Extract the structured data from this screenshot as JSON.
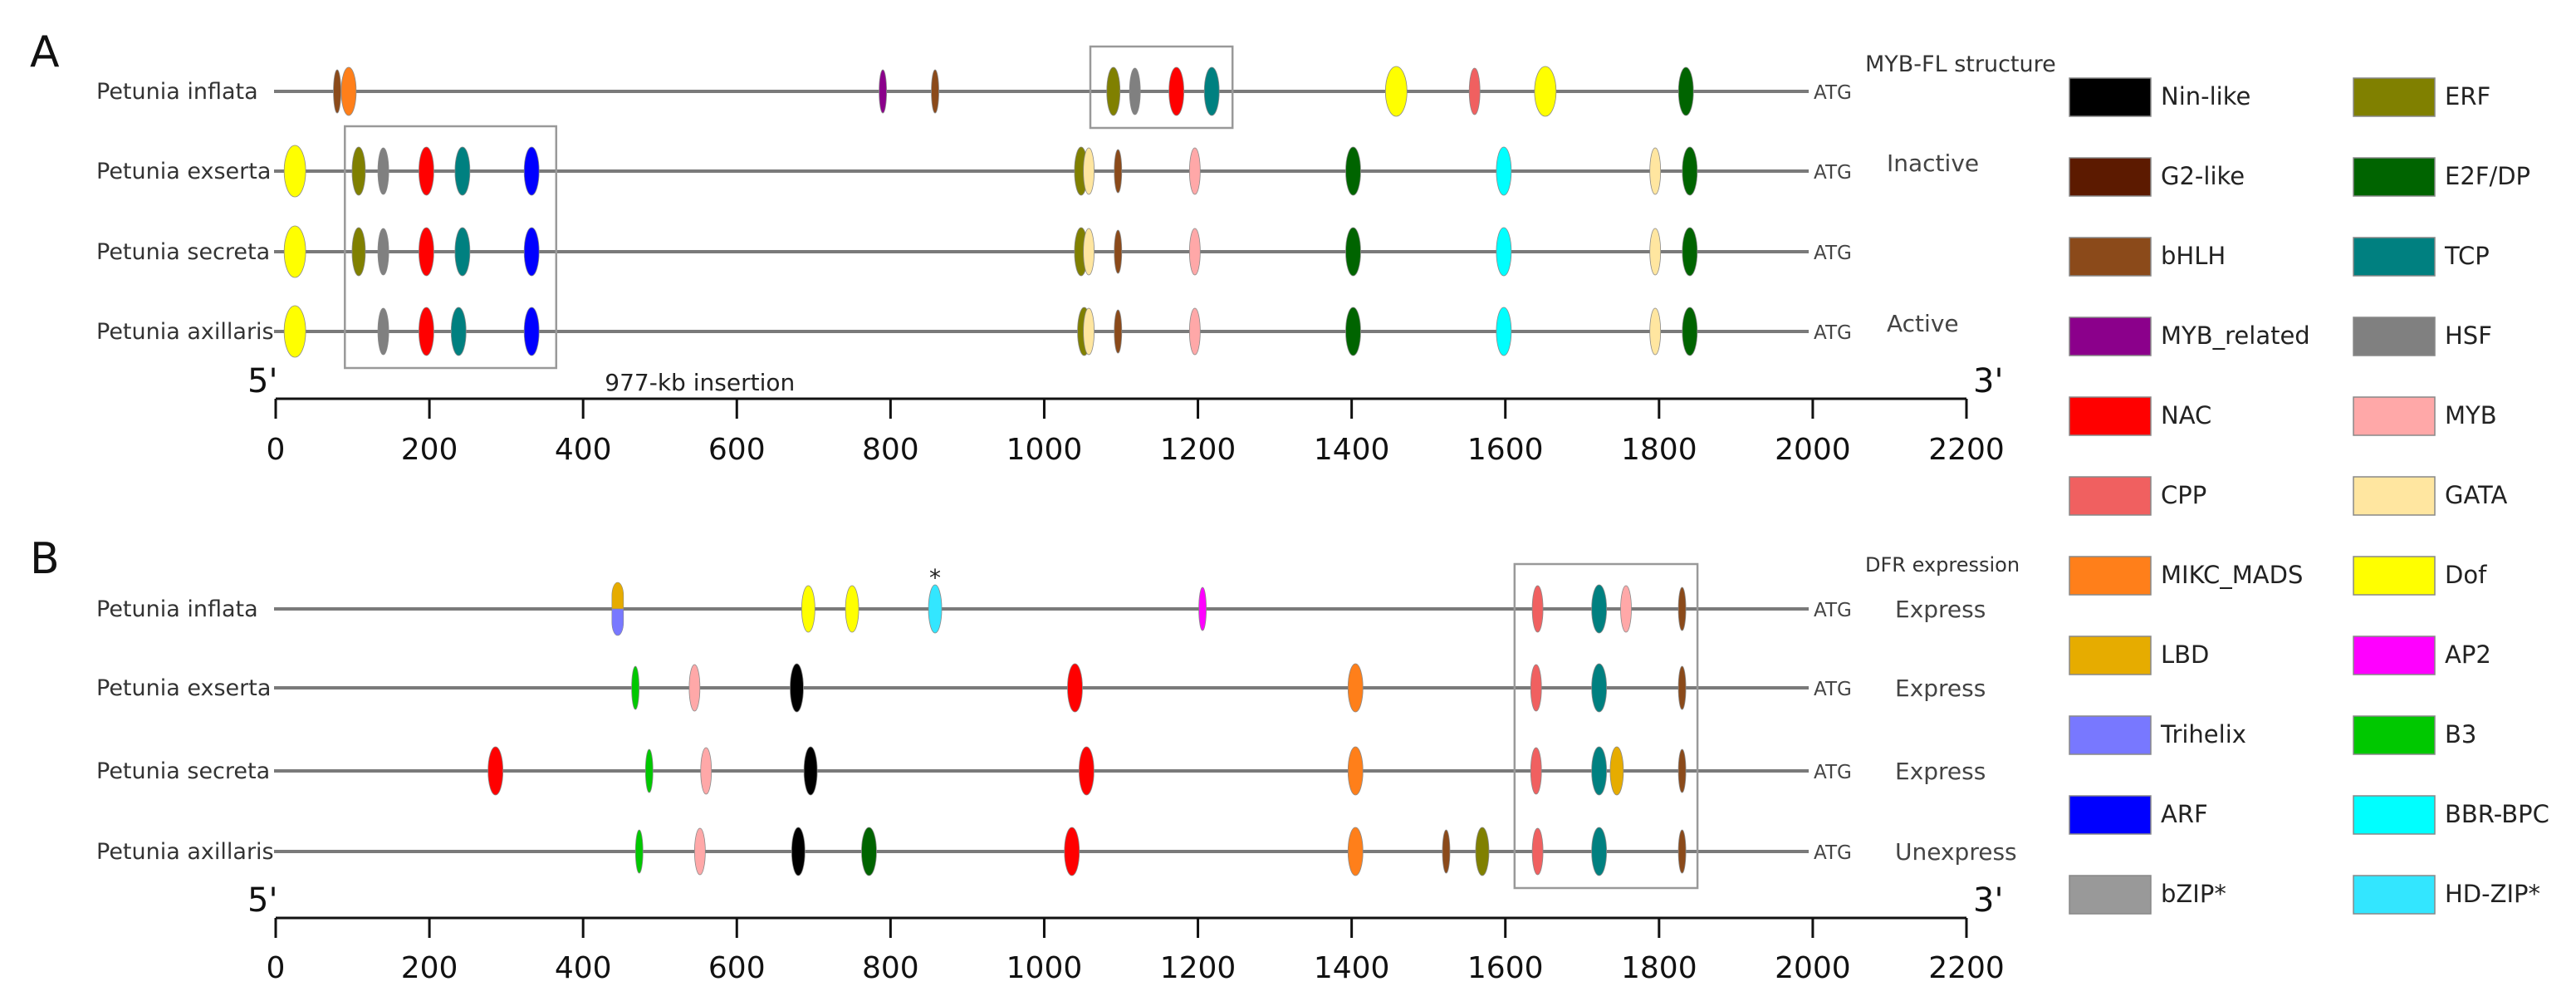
{
  "panels": [
    {
      "letter": "A",
      "header": "MYB-FL structure",
      "sequences": [
        {
          "name": "Petunia inflata",
          "atg": "ATG",
          "status": "",
          "elements": [
            [
              80,
              "bHLH"
            ],
            [
              95,
              "MIKC_MADS"
            ],
            [
              790,
              "MYB_related"
            ],
            [
              858,
              "bHLH"
            ],
            [
              1090,
              "ERF"
            ],
            [
              1118,
              "HSF"
            ],
            [
              1172,
              "NAC"
            ],
            [
              1218,
              "TCP"
            ],
            [
              1458,
              "Dof"
            ],
            [
              1560,
              "CPP"
            ],
            [
              1652,
              "Dof"
            ],
            [
              1835,
              "E2F/DP"
            ]
          ]
        },
        {
          "name": "Petunia exserta",
          "atg": "ATG",
          "status": "Inactive",
          "elements": [
            [
              25,
              "Dof"
            ],
            [
              108,
              "ERF"
            ],
            [
              140,
              "HSF"
            ],
            [
              196,
              "NAC"
            ],
            [
              243,
              "TCP"
            ],
            [
              333,
              "ARF"
            ],
            [
              1048,
              "ERF"
            ],
            [
              1058,
              "GATA"
            ],
            [
              1096,
              "bHLH"
            ],
            [
              1196,
              "MYB"
            ],
            [
              1402,
              "E2F/DP"
            ],
            [
              1598,
              "BBR-BPC"
            ],
            [
              1795,
              "GATA"
            ],
            [
              1840,
              "E2F/DP"
            ]
          ]
        },
        {
          "name": "Petunia secreta",
          "atg": "ATG",
          "status": "",
          "elements": [
            [
              25,
              "Dof"
            ],
            [
              108,
              "ERF"
            ],
            [
              140,
              "HSF"
            ],
            [
              196,
              "NAC"
            ],
            [
              243,
              "TCP"
            ],
            [
              333,
              "ARF"
            ],
            [
              1048,
              "ERF"
            ],
            [
              1058,
              "GATA"
            ],
            [
              1096,
              "bHLH"
            ],
            [
              1196,
              "MYB"
            ],
            [
              1402,
              "E2F/DP"
            ],
            [
              1598,
              "BBR-BPC"
            ],
            [
              1795,
              "GATA"
            ],
            [
              1840,
              "E2F/DP"
            ]
          ]
        },
        {
          "name": "Petunia axillaris",
          "atg": "ATG",
          "status": "Active",
          "elements": [
            [
              25,
              "Dof"
            ],
            [
              140,
              "HSF"
            ],
            [
              196,
              "NAC"
            ],
            [
              238,
              "TCP"
            ],
            [
              333,
              "ARF"
            ],
            [
              1052,
              "ERF"
            ],
            [
              1058,
              "GATA"
            ],
            [
              1096,
              "bHLH"
            ],
            [
              1196,
              "MYB"
            ],
            [
              1402,
              "E2F/DP"
            ],
            [
              1598,
              "BBR-BPC"
            ],
            [
              1795,
              "GATA"
            ],
            [
              1840,
              "E2F/DP"
            ]
          ]
        }
      ],
      "boxes": [
        {
          "from": 1060,
          "to": 1245,
          "rows": [
            0
          ]
        },
        {
          "from": 90,
          "to": 365,
          "rows": [
            1,
            3
          ]
        }
      ],
      "annotation": {
        "text": "977-kb insertion",
        "at": 385
      },
      "axis": {
        "start_label": "5'",
        "end_label": "3'",
        "min": 0,
        "max": 2200,
        "ticks": [
          0,
          200,
          400,
          600,
          800,
          1000,
          1200,
          1400,
          1600,
          1800,
          2000,
          2200
        ]
      }
    },
    {
      "letter": "B",
      "header": "DFR expression",
      "sequences": [
        {
          "name": "Petunia inflata",
          "atg": "ATG",
          "status": "Express",
          "elements": [
            [
              445,
              "LBD+Trihelix"
            ],
            [
              693,
              "Dof"
            ],
            [
              750,
              "Dof"
            ],
            [
              858,
              "HD-ZIP*"
            ],
            [
              1206,
              "AP2"
            ],
            [
              1642,
              "CPP"
            ],
            [
              1722,
              "TCP"
            ],
            [
              1757,
              "MYB"
            ],
            [
              1830,
              "bHLH"
            ]
          ]
        },
        {
          "name": "Petunia exserta",
          "atg": "ATG",
          "status": "Express",
          "elements": [
            [
              468,
              "B3"
            ],
            [
              545,
              "MYB"
            ],
            [
              678,
              "Nin-like"
            ],
            [
              1040,
              "NAC"
            ],
            [
              1405,
              "MIKC_MADS"
            ],
            [
              1640,
              "CPP"
            ],
            [
              1722,
              "TCP"
            ],
            [
              1830,
              "bHLH"
            ]
          ]
        },
        {
          "name": "Petunia secreta",
          "atg": "ATG",
          "status": "Express",
          "elements": [
            [
              286,
              "NAC"
            ],
            [
              486,
              "B3"
            ],
            [
              560,
              "MYB"
            ],
            [
              696,
              "Nin-like"
            ],
            [
              1055,
              "NAC"
            ],
            [
              1405,
              "MIKC_MADS"
            ],
            [
              1640,
              "CPP"
            ],
            [
              1722,
              "TCP"
            ],
            [
              1745,
              "LBD"
            ],
            [
              1830,
              "bHLH"
            ]
          ]
        },
        {
          "name": "Petunia axillaris",
          "atg": "ATG",
          "status": "Unexpress",
          "elements": [
            [
              473,
              "B3"
            ],
            [
              552,
              "MYB"
            ],
            [
              680,
              "Nin-like"
            ],
            [
              772,
              "E2F/DP"
            ],
            [
              1036,
              "NAC"
            ],
            [
              1405,
              "MIKC_MADS"
            ],
            [
              1523,
              "bHLH"
            ],
            [
              1570,
              "ERF"
            ],
            [
              1642,
              "CPP"
            ],
            [
              1722,
              "TCP"
            ],
            [
              1830,
              "bHLH"
            ]
          ]
        }
      ],
      "boxes": [
        {
          "from": 1612,
          "to": 1850,
          "rows": [
            0,
            3
          ]
        }
      ],
      "star": {
        "text": "*",
        "at": 858
      },
      "axis": {
        "start_label": "5'",
        "end_label": "3'",
        "min": 0,
        "max": 2200,
        "ticks": [
          0,
          200,
          400,
          600,
          800,
          1000,
          1200,
          1400,
          1600,
          1800,
          2000,
          2200
        ]
      }
    }
  ],
  "legend": [
    {
      "name": "Nin-like",
      "color": "#000000"
    },
    {
      "name": "ERF",
      "color": "#808000"
    },
    {
      "name": "G2-like",
      "color": "#5c1a00"
    },
    {
      "name": "E2F/DP",
      "color": "#006400"
    },
    {
      "name": "bHLH",
      "color": "#8b4a1a"
    },
    {
      "name": "TCP",
      "color": "#008080"
    },
    {
      "name": "MYB_related",
      "color": "#8b008b"
    },
    {
      "name": "HSF",
      "color": "#808080"
    },
    {
      "name": "NAC",
      "color": "#ff0000"
    },
    {
      "name": "MYB",
      "color": "#ffa8a8"
    },
    {
      "name": "CPP",
      "color": "#f06060"
    },
    {
      "name": "GATA",
      "color": "#ffe6a0"
    },
    {
      "name": "MIKC_MADS",
      "color": "#ff7f1a"
    },
    {
      "name": "Dof",
      "color": "#ffff00"
    },
    {
      "name": "LBD",
      "color": "#e6ac00"
    },
    {
      "name": "AP2",
      "color": "#ff00ff"
    },
    {
      "name": "Trihelix",
      "color": "#7878ff"
    },
    {
      "name": "B3",
      "color": "#00c800"
    },
    {
      "name": "ARF",
      "color": "#0000ff"
    },
    {
      "name": "BBR-BPC",
      "color": "#00ffff"
    },
    {
      "name": "bZIP*",
      "color": "#999999"
    },
    {
      "name": "HD-ZIP*",
      "color": "#33e6ff"
    }
  ]
}
